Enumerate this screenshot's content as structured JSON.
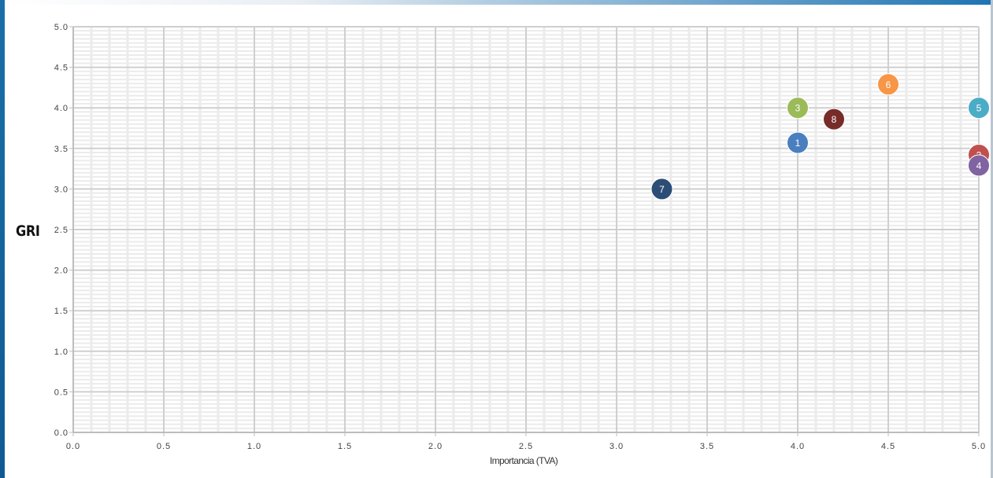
{
  "chart_data": {
    "type": "scatter",
    "title": "",
    "xlabel": "Importancia (TVA)",
    "ylabel": "GRI",
    "xlim": [
      0,
      5
    ],
    "ylim": [
      0,
      5
    ],
    "x_ticks": [
      "0.0",
      "0.5",
      "1.0",
      "1.5",
      "2.0",
      "2.5",
      "3.0",
      "3.5",
      "4.0",
      "4.5",
      "5.0"
    ],
    "y_ticks": [
      "0.0",
      "0.5",
      "1.0",
      "1.5",
      "2.0",
      "2.5",
      "3.0",
      "3.5",
      "4.0",
      "4.5",
      "5.0"
    ],
    "grid": true,
    "points": [
      {
        "label": "1",
        "x": 4.0,
        "y": 3.57,
        "color": "#4a7fbf"
      },
      {
        "label": "2",
        "x": 5.0,
        "y": 3.42,
        "color": "#c0504d"
      },
      {
        "label": "3",
        "x": 4.0,
        "y": 4.0,
        "color": "#9bbb59"
      },
      {
        "label": "4",
        "x": 5.0,
        "y": 3.29,
        "color": "#8064a2"
      },
      {
        "label": "5",
        "x": 5.0,
        "y": 4.0,
        "color": "#4bacc6"
      },
      {
        "label": "6",
        "x": 4.5,
        "y": 4.29,
        "color": "#f79646"
      },
      {
        "label": "7",
        "x": 3.25,
        "y": 3.0,
        "color": "#2c4d75"
      },
      {
        "label": "8",
        "x": 4.2,
        "y": 3.86,
        "color": "#772c2a"
      }
    ]
  }
}
